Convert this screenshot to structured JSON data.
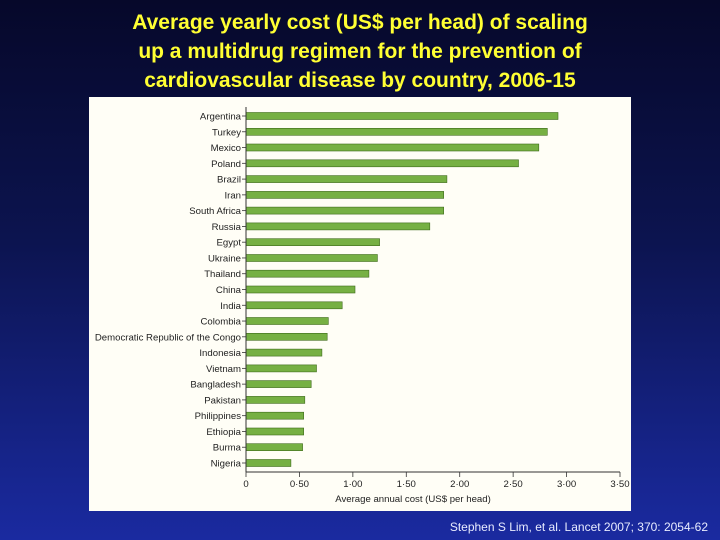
{
  "slide": {
    "title_lines": [
      "Average yearly cost (US$ per head) of scaling",
      "up a multidrug regimen for the prevention of",
      "cardiovascular disease by country, 2006-15"
    ],
    "citation": "Stephen S Lim, et al. Lancet 2007; 370: 2054-62"
  },
  "colors": {
    "title": "#ffff33",
    "bar_fill": "#76b043",
    "bar_stroke": "#3f6b1c",
    "panel_background": "#fffef6"
  },
  "chart_data": {
    "type": "bar",
    "orientation": "horizontal",
    "title": "",
    "xlabel": "Average annual cost (US$ per head)",
    "ylabel": "",
    "xlim": [
      0,
      3.5
    ],
    "xticks": [
      0,
      0.5,
      1.0,
      1.5,
      2.0,
      2.5,
      3.0,
      3.5
    ],
    "xtick_labels": [
      "0",
      "0·50",
      "1·00",
      "1·50",
      "2·00",
      "2·50",
      "3·00",
      "3·50"
    ],
    "grid": false,
    "categories": [
      "Argentina",
      "Turkey",
      "Mexico",
      "Poland",
      "Brazil",
      "Iran",
      "South Africa",
      "Russia",
      "Egypt",
      "Ukraine",
      "Thailand",
      "China",
      "India",
      "Colombia",
      "Democratic Republic of the Congo",
      "Indonesia",
      "Vietnam",
      "Bangladesh",
      "Pakistan",
      "Philippines",
      "Ethiopia",
      "Burma",
      "Nigeria"
    ],
    "values": [
      2.92,
      2.82,
      2.74,
      2.55,
      1.88,
      1.85,
      1.85,
      1.72,
      1.25,
      1.23,
      1.15,
      1.02,
      0.9,
      0.77,
      0.76,
      0.71,
      0.66,
      0.61,
      0.55,
      0.54,
      0.54,
      0.53,
      0.42
    ]
  }
}
